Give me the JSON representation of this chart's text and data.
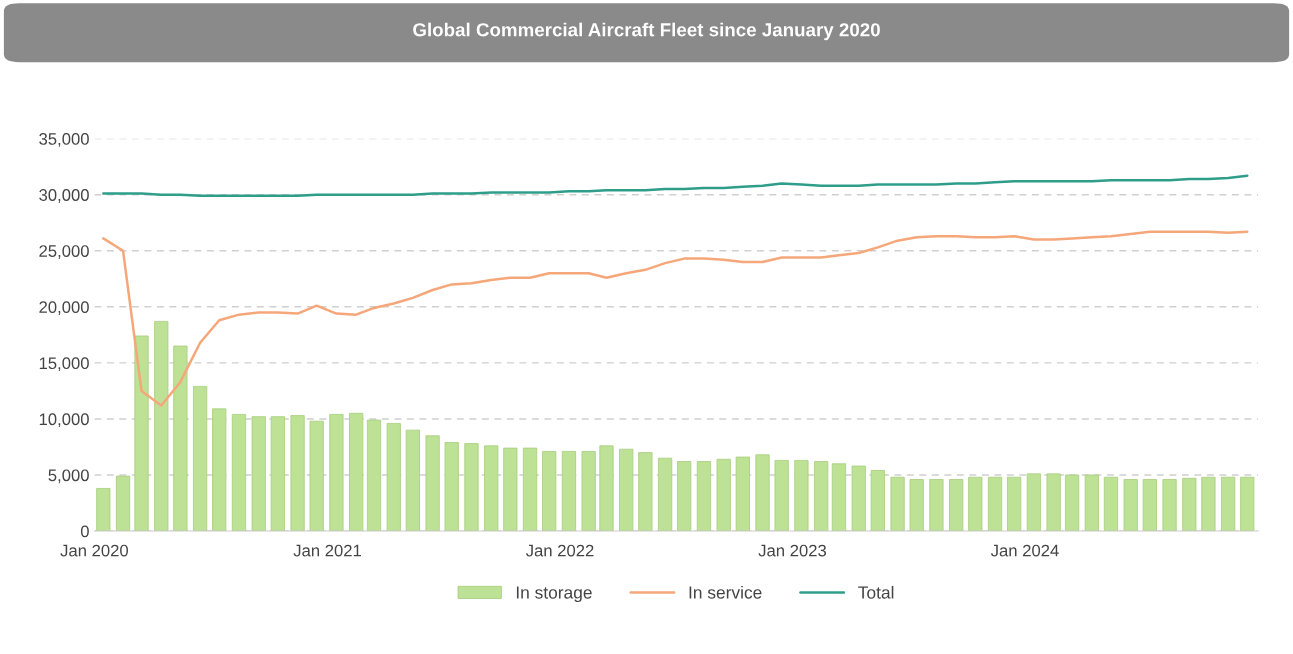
{
  "chart_data": {
    "type": "bar",
    "title": "Global Commercial Aircraft Fleet since January 2020",
    "x": [
      "2020-01-15",
      "2020-02-15",
      "2020-03-15",
      "2020-04-15",
      "2020-05-15",
      "2020-06-15",
      "2020-07-15",
      "2020-08-15",
      "2020-09-15",
      "2020-10-15",
      "2020-11-15",
      "2020-12-15",
      "2021-01-15",
      "2021-02-15",
      "2021-03-15",
      "2021-04-15",
      "2021-05-15",
      "2021-06-15",
      "2021-07-15",
      "2021-08-15",
      "2021-09-15",
      "2021-10-15",
      "2021-11-15",
      "2021-12-15",
      "2022-01-15",
      "2022-02-15",
      "2022-03-15",
      "2022-04-15",
      "2022-05-15",
      "2022-06-15",
      "2022-07-15",
      "2022-08-15",
      "2022-09-15",
      "2022-10-15",
      "2022-11-15",
      "2022-12-15",
      "2023-01-15",
      "2023-02-15",
      "2023-03-15",
      "2023-04-15",
      "2023-05-15",
      "2023-06-15",
      "2023-07-15",
      "2023-08-15",
      "2023-09-15",
      "2023-10-15",
      "2023-11-15",
      "2023-12-15",
      "2024-01-15",
      "2024-02-15",
      "2024-03-15",
      "2024-04-15",
      "2024-05-15",
      "2024-06-15",
      "2024-07-15",
      "2024-08-15",
      "2024-09-15",
      "2024-10-15",
      "2024-11-15",
      "2024-12-15"
    ],
    "series": [
      {
        "name": "In storage",
        "color": "#bde195",
        "values": [
          3800,
          4900,
          17400,
          18700,
          16500,
          12900,
          10900,
          10400,
          10200,
          10200,
          10300,
          9800,
          10400,
          10500,
          9900,
          9600,
          9000,
          8500,
          7900,
          7800,
          7600,
          7400,
          7400,
          7100,
          7100,
          7100,
          7600,
          7300,
          7000,
          6500,
          6200,
          6200,
          6400,
          6600,
          6800,
          6300,
          6300,
          6200,
          6000,
          5800,
          5400,
          4800,
          4600,
          4600,
          4600,
          4800,
          4800,
          4800,
          5100,
          5100,
          5000,
          5000,
          4800,
          4600,
          4600,
          4600,
          4700,
          4800,
          4800,
          4800
        ]
      },
      {
        "name": "In service",
        "type": "line",
        "color": "#f5a77a",
        "values": [
          26100,
          25000,
          12500,
          11200,
          13300,
          16800,
          18800,
          19300,
          19500,
          19500,
          19400,
          20100,
          19400,
          19300,
          19900,
          20300,
          20800,
          21500,
          22000,
          22100,
          22400,
          22600,
          22600,
          23000,
          23000,
          23000,
          22600,
          23000,
          23300,
          23900,
          24300,
          24300,
          24200,
          24000,
          24000,
          24400,
          24400,
          24400,
          24600,
          24800,
          25300,
          25900,
          26200,
          26300,
          26300,
          26200,
          26200,
          26300,
          26000,
          26000,
          26100,
          26200,
          26300,
          26500,
          26700,
          26700,
          26700,
          26700,
          26600,
          26700
        ]
      },
      {
        "name": "Total",
        "type": "line",
        "color": "#2e9e8a",
        "values": [
          30100,
          30100,
          30100,
          30000,
          30000,
          29900,
          29900,
          29900,
          29900,
          29900,
          29900,
          30000,
          30000,
          30000,
          30000,
          30000,
          30000,
          30100,
          30100,
          30100,
          30200,
          30200,
          30200,
          30200,
          30300,
          30300,
          30400,
          30400,
          30400,
          30500,
          30500,
          30600,
          30600,
          30700,
          30800,
          31000,
          30900,
          30800,
          30800,
          30800,
          30900,
          30900,
          30900,
          30900,
          31000,
          31000,
          31100,
          31200,
          31200,
          31200,
          31200,
          31200,
          31300,
          31300,
          31300,
          31300,
          31400,
          31400,
          31500,
          31700
        ]
      }
    ],
    "xlim": [
      "2020-01-01",
      "2025-01-01"
    ],
    "xticks": [
      {
        "value": "2020-01-01",
        "label": "Jan 2020"
      },
      {
        "value": "2021-01-01",
        "label": "Jan 2021"
      },
      {
        "value": "2022-01-01",
        "label": "Jan 2022"
      },
      {
        "value": "2023-01-01",
        "label": "Jan 2023"
      },
      {
        "value": "2024-01-01",
        "label": "Jan 2024"
      }
    ],
    "ylim": [
      0,
      35000
    ],
    "yticks": [
      {
        "value": 0,
        "label": "0"
      },
      {
        "value": 5000,
        "label": "5,000"
      },
      {
        "value": 10000,
        "label": "10,000"
      },
      {
        "value": 15000,
        "label": "15,000"
      },
      {
        "value": 20000,
        "label": "20,000"
      },
      {
        "value": 25000,
        "label": "25,000"
      },
      {
        "value": 30000,
        "label": "30,000"
      },
      {
        "value": 35000,
        "label": "35,000"
      }
    ],
    "grid": "y",
    "legend": "bottom",
    "marker": "none",
    "line_style": "solid"
  }
}
